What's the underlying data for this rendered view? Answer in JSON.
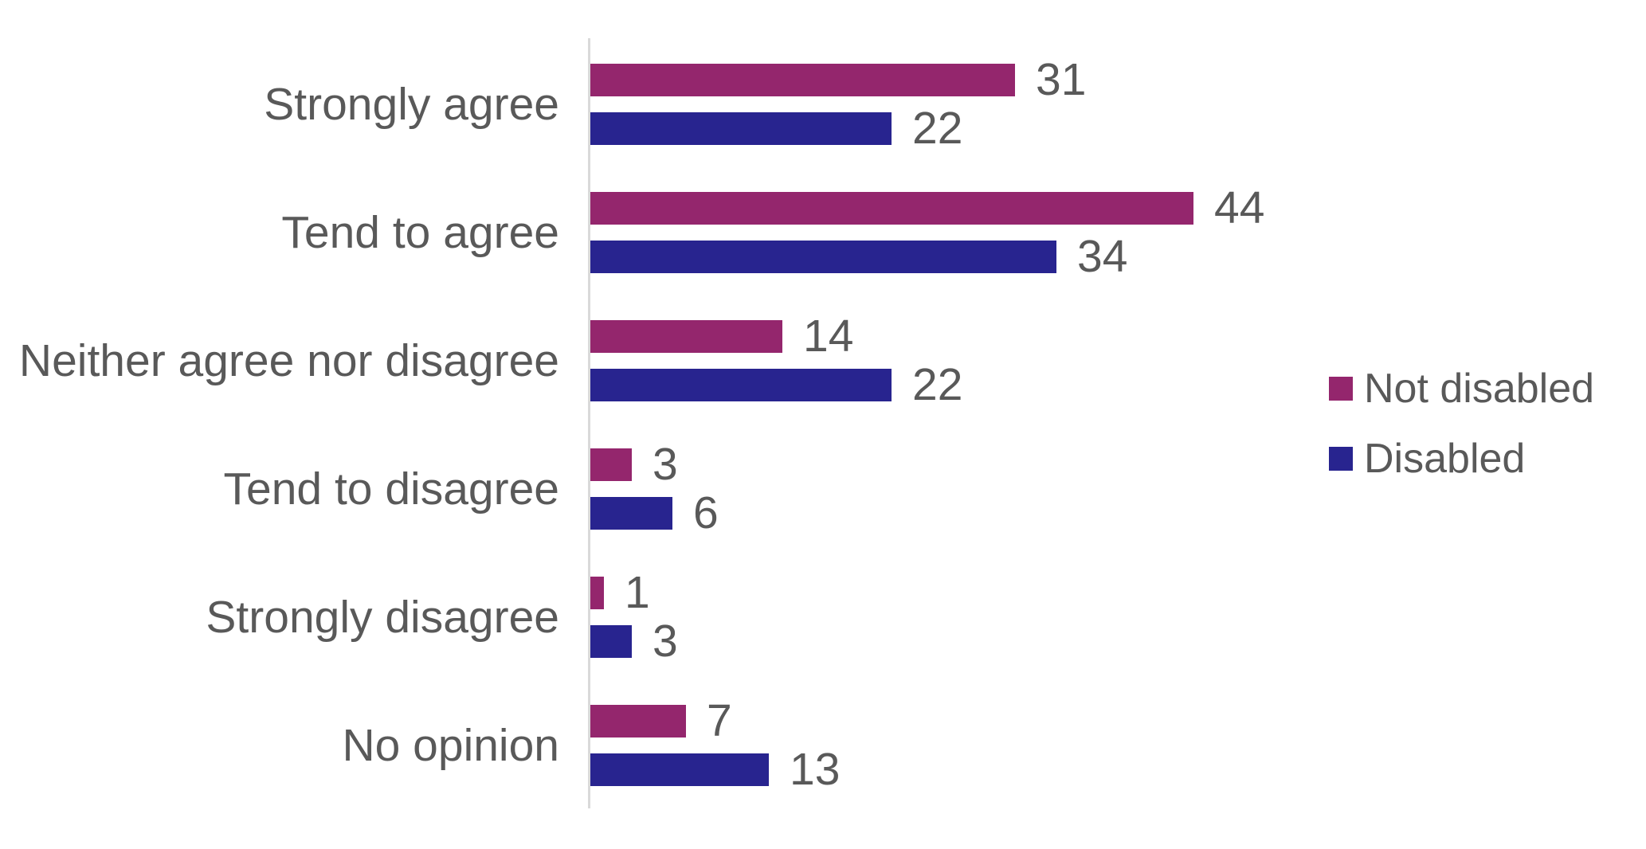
{
  "chart_data": {
    "type": "bar",
    "orientation": "horizontal",
    "title": "",
    "categories": [
      "Strongly agree",
      "Tend to agree",
      "Neither agree nor disagree",
      "Tend to disagree",
      "Strongly disagree",
      "No opinion"
    ],
    "series": [
      {
        "name": "Not disabled",
        "color": "#94266D",
        "values": [
          31,
          44,
          14,
          3,
          1,
          7
        ]
      },
      {
        "name": "Disabled",
        "color": "#28248F",
        "values": [
          22,
          34,
          22,
          6,
          3,
          13
        ]
      }
    ],
    "value_labels": true,
    "xlim": [
      0,
      45
    ],
    "grid": false,
    "legend_position": "right",
    "axis_line_color": "#D9D9D9",
    "label_color": "#595959",
    "background_color": "#FFFFFF"
  }
}
